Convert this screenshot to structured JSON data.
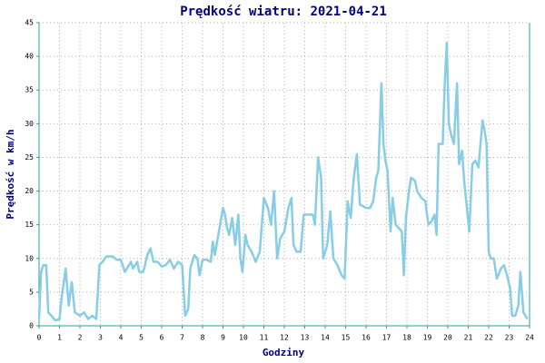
{
  "chart_data": {
    "type": "line",
    "title": "Prędkość wiatru: 2021-04-21",
    "xlabel": "Godziny",
    "ylabel": "Prędkość w km/h",
    "color": "#87cde6",
    "grid": true,
    "xlim": [
      0,
      24
    ],
    "xticks": [
      0,
      1,
      2,
      3,
      4,
      5,
      6,
      7,
      8,
      9,
      10,
      11,
      12,
      13,
      14,
      15,
      16,
      17,
      18,
      19,
      20,
      21,
      22,
      23,
      24
    ],
    "ylim": [
      0,
      45
    ],
    "yticks": [
      0,
      5,
      10,
      15,
      20,
      25,
      30,
      35,
      40,
      45
    ],
    "x": [
      0.0,
      0.1,
      0.2,
      0.35,
      0.45,
      0.6,
      0.8,
      1.0,
      1.1,
      1.3,
      1.45,
      1.6,
      1.75,
      2.0,
      2.2,
      2.4,
      2.6,
      2.8,
      2.95,
      3.1,
      3.3,
      3.6,
      3.8,
      4.0,
      4.2,
      4.4,
      4.5,
      4.6,
      4.8,
      4.9,
      5.1,
      5.3,
      5.45,
      5.6,
      5.8,
      6.0,
      6.2,
      6.4,
      6.6,
      6.8,
      7.0,
      7.15,
      7.3,
      7.4,
      7.6,
      7.75,
      7.85,
      8.0,
      8.2,
      8.4,
      8.5,
      8.6,
      8.8,
      9.0,
      9.1,
      9.2,
      9.3,
      9.45,
      9.6,
      9.75,
      9.85,
      9.95,
      10.1,
      10.2,
      10.4,
      10.6,
      10.8,
      11.0,
      11.2,
      11.35,
      11.5,
      11.65,
      11.8,
      12.0,
      12.2,
      12.35,
      12.45,
      12.6,
      12.8,
      12.95,
      13.2,
      13.4,
      13.5,
      13.65,
      13.8,
      13.9,
      14.1,
      14.25,
      14.4,
      14.6,
      14.8,
      14.95,
      15.1,
      15.25,
      15.4,
      15.55,
      15.7,
      16.0,
      16.2,
      16.35,
      16.5,
      16.6,
      16.75,
      16.85,
      16.95,
      17.05,
      17.2,
      17.3,
      17.45,
      17.6,
      17.75,
      17.85,
      17.95,
      18.1,
      18.2,
      18.4,
      18.5,
      18.7,
      18.9,
      19.05,
      19.2,
      19.35,
      19.45,
      19.55,
      19.75,
      19.85,
      19.95,
      20.05,
      20.15,
      20.3,
      20.45,
      20.55,
      20.7,
      20.8,
      20.95,
      21.05,
      21.2,
      21.35,
      21.5,
      21.6,
      21.7,
      21.8,
      21.9,
      22.0,
      22.1,
      22.25,
      22.4,
      22.6,
      22.75,
      22.9,
      23.05,
      23.15,
      23.3,
      23.45,
      23.55,
      23.7,
      23.9
    ],
    "values": [
      1,
      8,
      9,
      9,
      2,
      1.5,
      0.8,
      1,
      4,
      8.5,
      3,
      6.5,
      2,
      1.5,
      2,
      1,
      1.5,
      1,
      9,
      9.5,
      10.3,
      10.3,
      9.8,
      9.8,
      8,
      9,
      9.5,
      8.5,
      9.5,
      8,
      8,
      10.5,
      11.5,
      9.5,
      9.5,
      8.8,
      9,
      9.8,
      8.5,
      9.5,
      9,
      1.5,
      2.5,
      8.5,
      10.5,
      10,
      7.5,
      9.8,
      9.8,
      9.5,
      12.5,
      10.5,
      14,
      17.5,
      16.5,
      14.5,
      13.5,
      16,
      12,
      16.5,
      10,
      8,
      13.5,
      12,
      11,
      9.5,
      11,
      19,
      17.5,
      15,
      20,
      10,
      13,
      14,
      17.5,
      19,
      12,
      11,
      11,
      16.5,
      16.5,
      16.5,
      15,
      25,
      22,
      10,
      12,
      17,
      10,
      9,
      7.5,
      7,
      18.5,
      16,
      22,
      25.5,
      18,
      17.5,
      17.5,
      18.5,
      22,
      23,
      36,
      27,
      24.5,
      23,
      14,
      19,
      15,
      14.5,
      14,
      7.5,
      16,
      20,
      22,
      21.5,
      20,
      19,
      18.5,
      15,
      15.5,
      16.5,
      13.5,
      27,
      27,
      36,
      42,
      30,
      28.5,
      27,
      36,
      24,
      26,
      21.5,
      17,
      14,
      24,
      24.5,
      23.5,
      27,
      30.5,
      29,
      27,
      11,
      10,
      10,
      7,
      8.5,
      9,
      7.5,
      5.5,
      1.5,
      1.5,
      3,
      8,
      2,
      1
    ]
  }
}
